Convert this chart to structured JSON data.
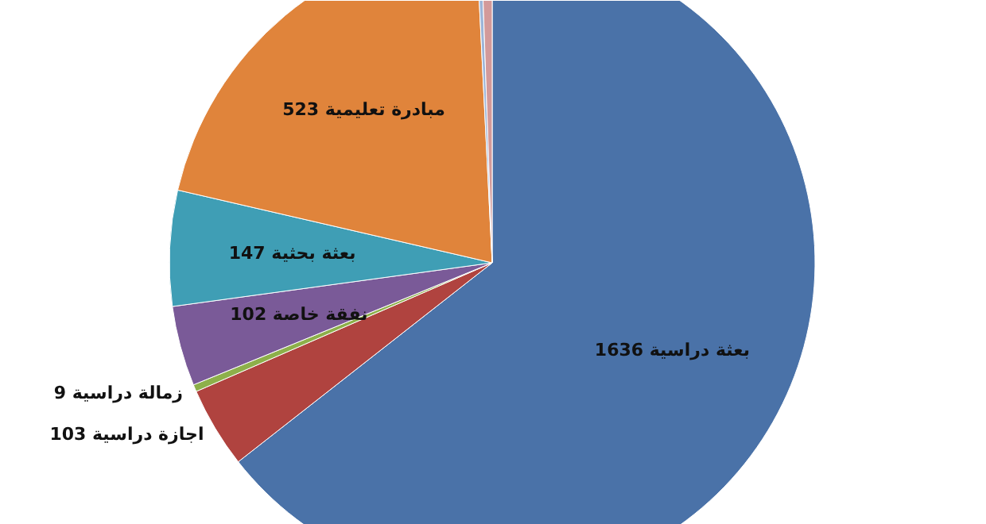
{
  "chart_data": {
    "type": "pie",
    "categories": [
      "بعثة دراسية",
      "اجازة دراسية",
      "زمالة دراسية",
      "نفقة خاصة",
      "بعثة بحثية",
      "مبادرة تعليمية",
      null,
      null
    ],
    "values": [
      1636,
      103,
      9,
      102,
      147,
      523,
      6,
      14
    ],
    "value_labels": [
      "1636",
      "103",
      "9",
      "102",
      "147",
      "523",
      null,
      null
    ],
    "colors": [
      "#4a72a8",
      "#b0433f",
      "#8db04a",
      "#7a5a98",
      "#3f9eb5",
      "#e0843b",
      "#9db5d8",
      "#d39a9a"
    ]
  }
}
